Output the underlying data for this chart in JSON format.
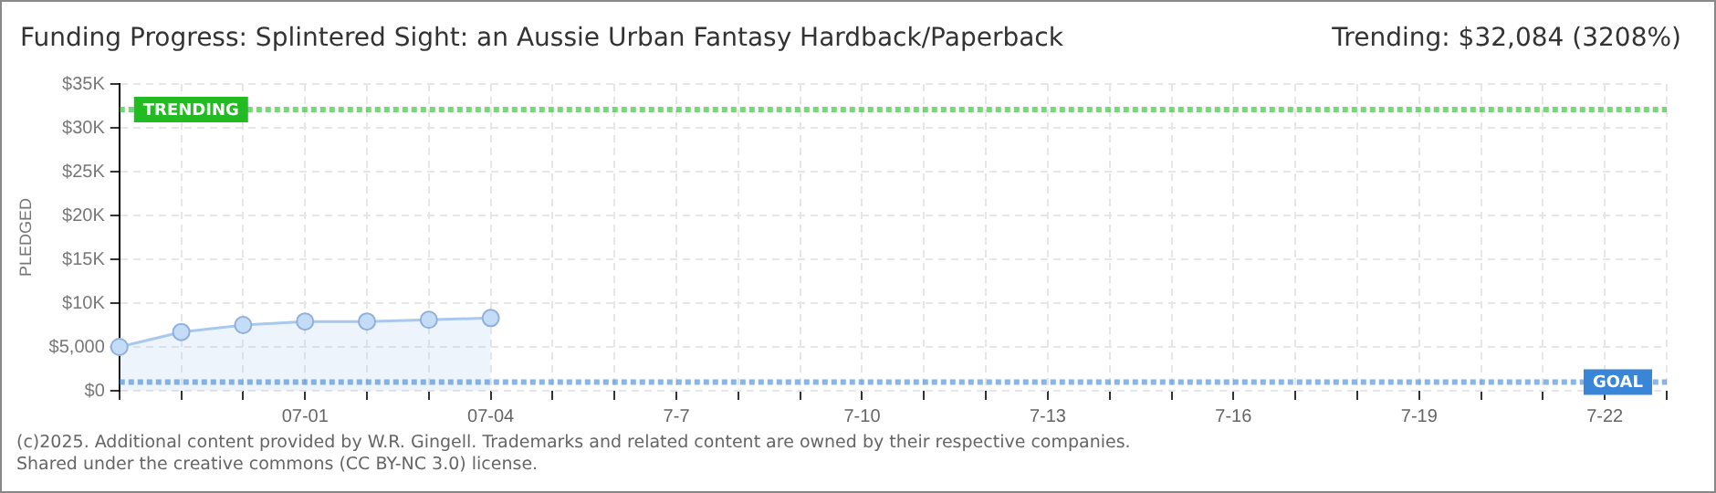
{
  "chart_data": {
    "type": "area",
    "title": "Funding Progress: Splintered Sight: an Aussie Urban Fantasy Hardback/Paperback",
    "subtitle": "Trending: $32,084 (3208%)",
    "ylabel": "PLEDGED",
    "categories": [
      null,
      null,
      null,
      "07-01",
      null,
      null,
      "07-04",
      null,
      null,
      "7-7",
      null,
      null,
      "7-10",
      null,
      null,
      "7-13",
      null,
      null,
      "7-16",
      null,
      null,
      "7-19",
      null,
      null,
      "7-22",
      null
    ],
    "series": [
      {
        "color": "#a8c8f0",
        "values": [
          5000,
          6700,
          7500,
          7900,
          7900,
          8100,
          8300,
          null,
          null,
          null,
          null,
          null,
          null,
          null,
          null,
          null,
          null,
          null,
          null,
          null,
          null,
          null,
          null,
          null,
          null,
          null
        ]
      }
    ],
    "ylim": [
      0,
      35000
    ],
    "yticks": [
      {
        "value": 0,
        "label": "$0"
      },
      {
        "value": 5000,
        "label": "$5,000"
      },
      {
        "value": 10000,
        "label": "$10K"
      },
      {
        "value": 15000,
        "label": "$15K"
      },
      {
        "value": 20000,
        "label": "$20K"
      },
      {
        "value": 25000,
        "label": "$25K"
      },
      {
        "value": 30000,
        "label": "$30K"
      },
      {
        "value": 35000,
        "label": "$35K"
      }
    ],
    "ref_lines": [
      {
        "axis": "y",
        "value": 32084,
        "label": "TRENDING",
        "color": "#22bb22",
        "line_style": "dotted"
      },
      {
        "axis": "y",
        "value": 1000,
        "label": "GOAL",
        "color": "#3a86d6",
        "line_style": "dotted"
      }
    ],
    "grid": true,
    "legend": false,
    "marker": "circle",
    "annotations": [
      "(c)2025. Additional content provided by W.R. Gingell. Trademarks and related content are owned by their respective companies.",
      "Shared under the creative commons (CC BY-NC 3.0) license."
    ]
  }
}
